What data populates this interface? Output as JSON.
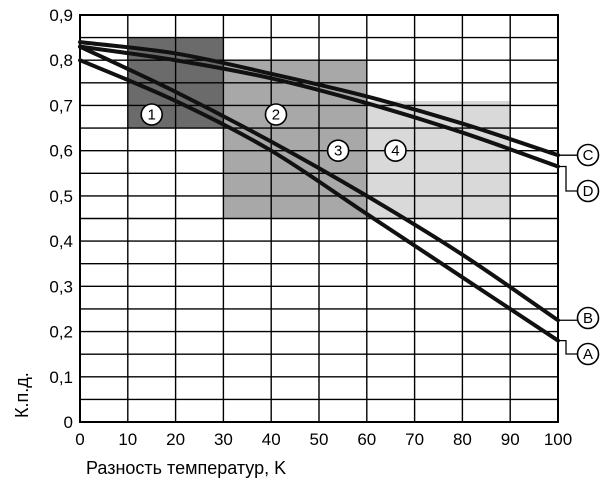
{
  "chart_data": {
    "type": "line",
    "xlabel": "Разность температур, K",
    "ylabel": "К.п.д.",
    "xlim": [
      0,
      100
    ],
    "ylim": [
      0,
      0.9
    ],
    "x_ticks": [
      "0",
      "10",
      "20",
      "30",
      "40",
      "50",
      "60",
      "70",
      "80",
      "90",
      "100"
    ],
    "y_ticks": [
      "0",
      "0,1",
      "0,2",
      "0,3",
      "0,4",
      "0,5",
      "0,6",
      "0,7",
      "0,8",
      "0,9"
    ],
    "x_tick_values": [
      0,
      10,
      20,
      30,
      40,
      50,
      60,
      70,
      80,
      90,
      100
    ],
    "y_tick_values": [
      0,
      0.1,
      0.2,
      0.3,
      0.4,
      0.5,
      0.6,
      0.7,
      0.8,
      0.9
    ],
    "grid": true,
    "series": [
      {
        "name": "A",
        "x": [
          0,
          20,
          40,
          60,
          80,
          100
        ],
        "y": [
          0.8,
          0.71,
          0.6,
          0.46,
          0.32,
          0.18
        ]
      },
      {
        "name": "B",
        "x": [
          0,
          20,
          40,
          60,
          80,
          100
        ],
        "y": [
          0.83,
          0.73,
          0.62,
          0.5,
          0.37,
          0.225
        ]
      },
      {
        "name": "C",
        "x": [
          0,
          20,
          40,
          60,
          80,
          100
        ],
        "y": [
          0.84,
          0.815,
          0.77,
          0.72,
          0.66,
          0.59
        ]
      },
      {
        "name": "D",
        "x": [
          0,
          20,
          40,
          60,
          80,
          100
        ],
        "y": [
          0.83,
          0.8,
          0.76,
          0.705,
          0.64,
          0.565
        ]
      }
    ],
    "zones": [
      {
        "name": "1",
        "x_range": [
          10,
          30
        ],
        "y_range": [
          0.65,
          0.85
        ],
        "color": "#6b6b6b",
        "label_at": [
          15,
          0.68
        ]
      },
      {
        "name": "2",
        "x_range": [
          30,
          50
        ],
        "y_range": [
          0.55,
          0.8
        ],
        "color": "#7e7e7e",
        "label_at": [
          41,
          0.68
        ]
      },
      {
        "name": "3",
        "x_range": [
          30,
          60
        ],
        "y_range": [
          0.45,
          0.8
        ],
        "color": "#a8a8a8",
        "label_at": [
          54,
          0.6
        ]
      },
      {
        "name": "4",
        "x_range": [
          60,
          90
        ],
        "y_range": [
          0.45,
          0.71
        ],
        "color": "#d9d9d9",
        "label_at": [
          66,
          0.6
        ]
      }
    ],
    "colors": {
      "curve": "#111111",
      "grid": "#000000",
      "background": "#ffffff"
    }
  }
}
